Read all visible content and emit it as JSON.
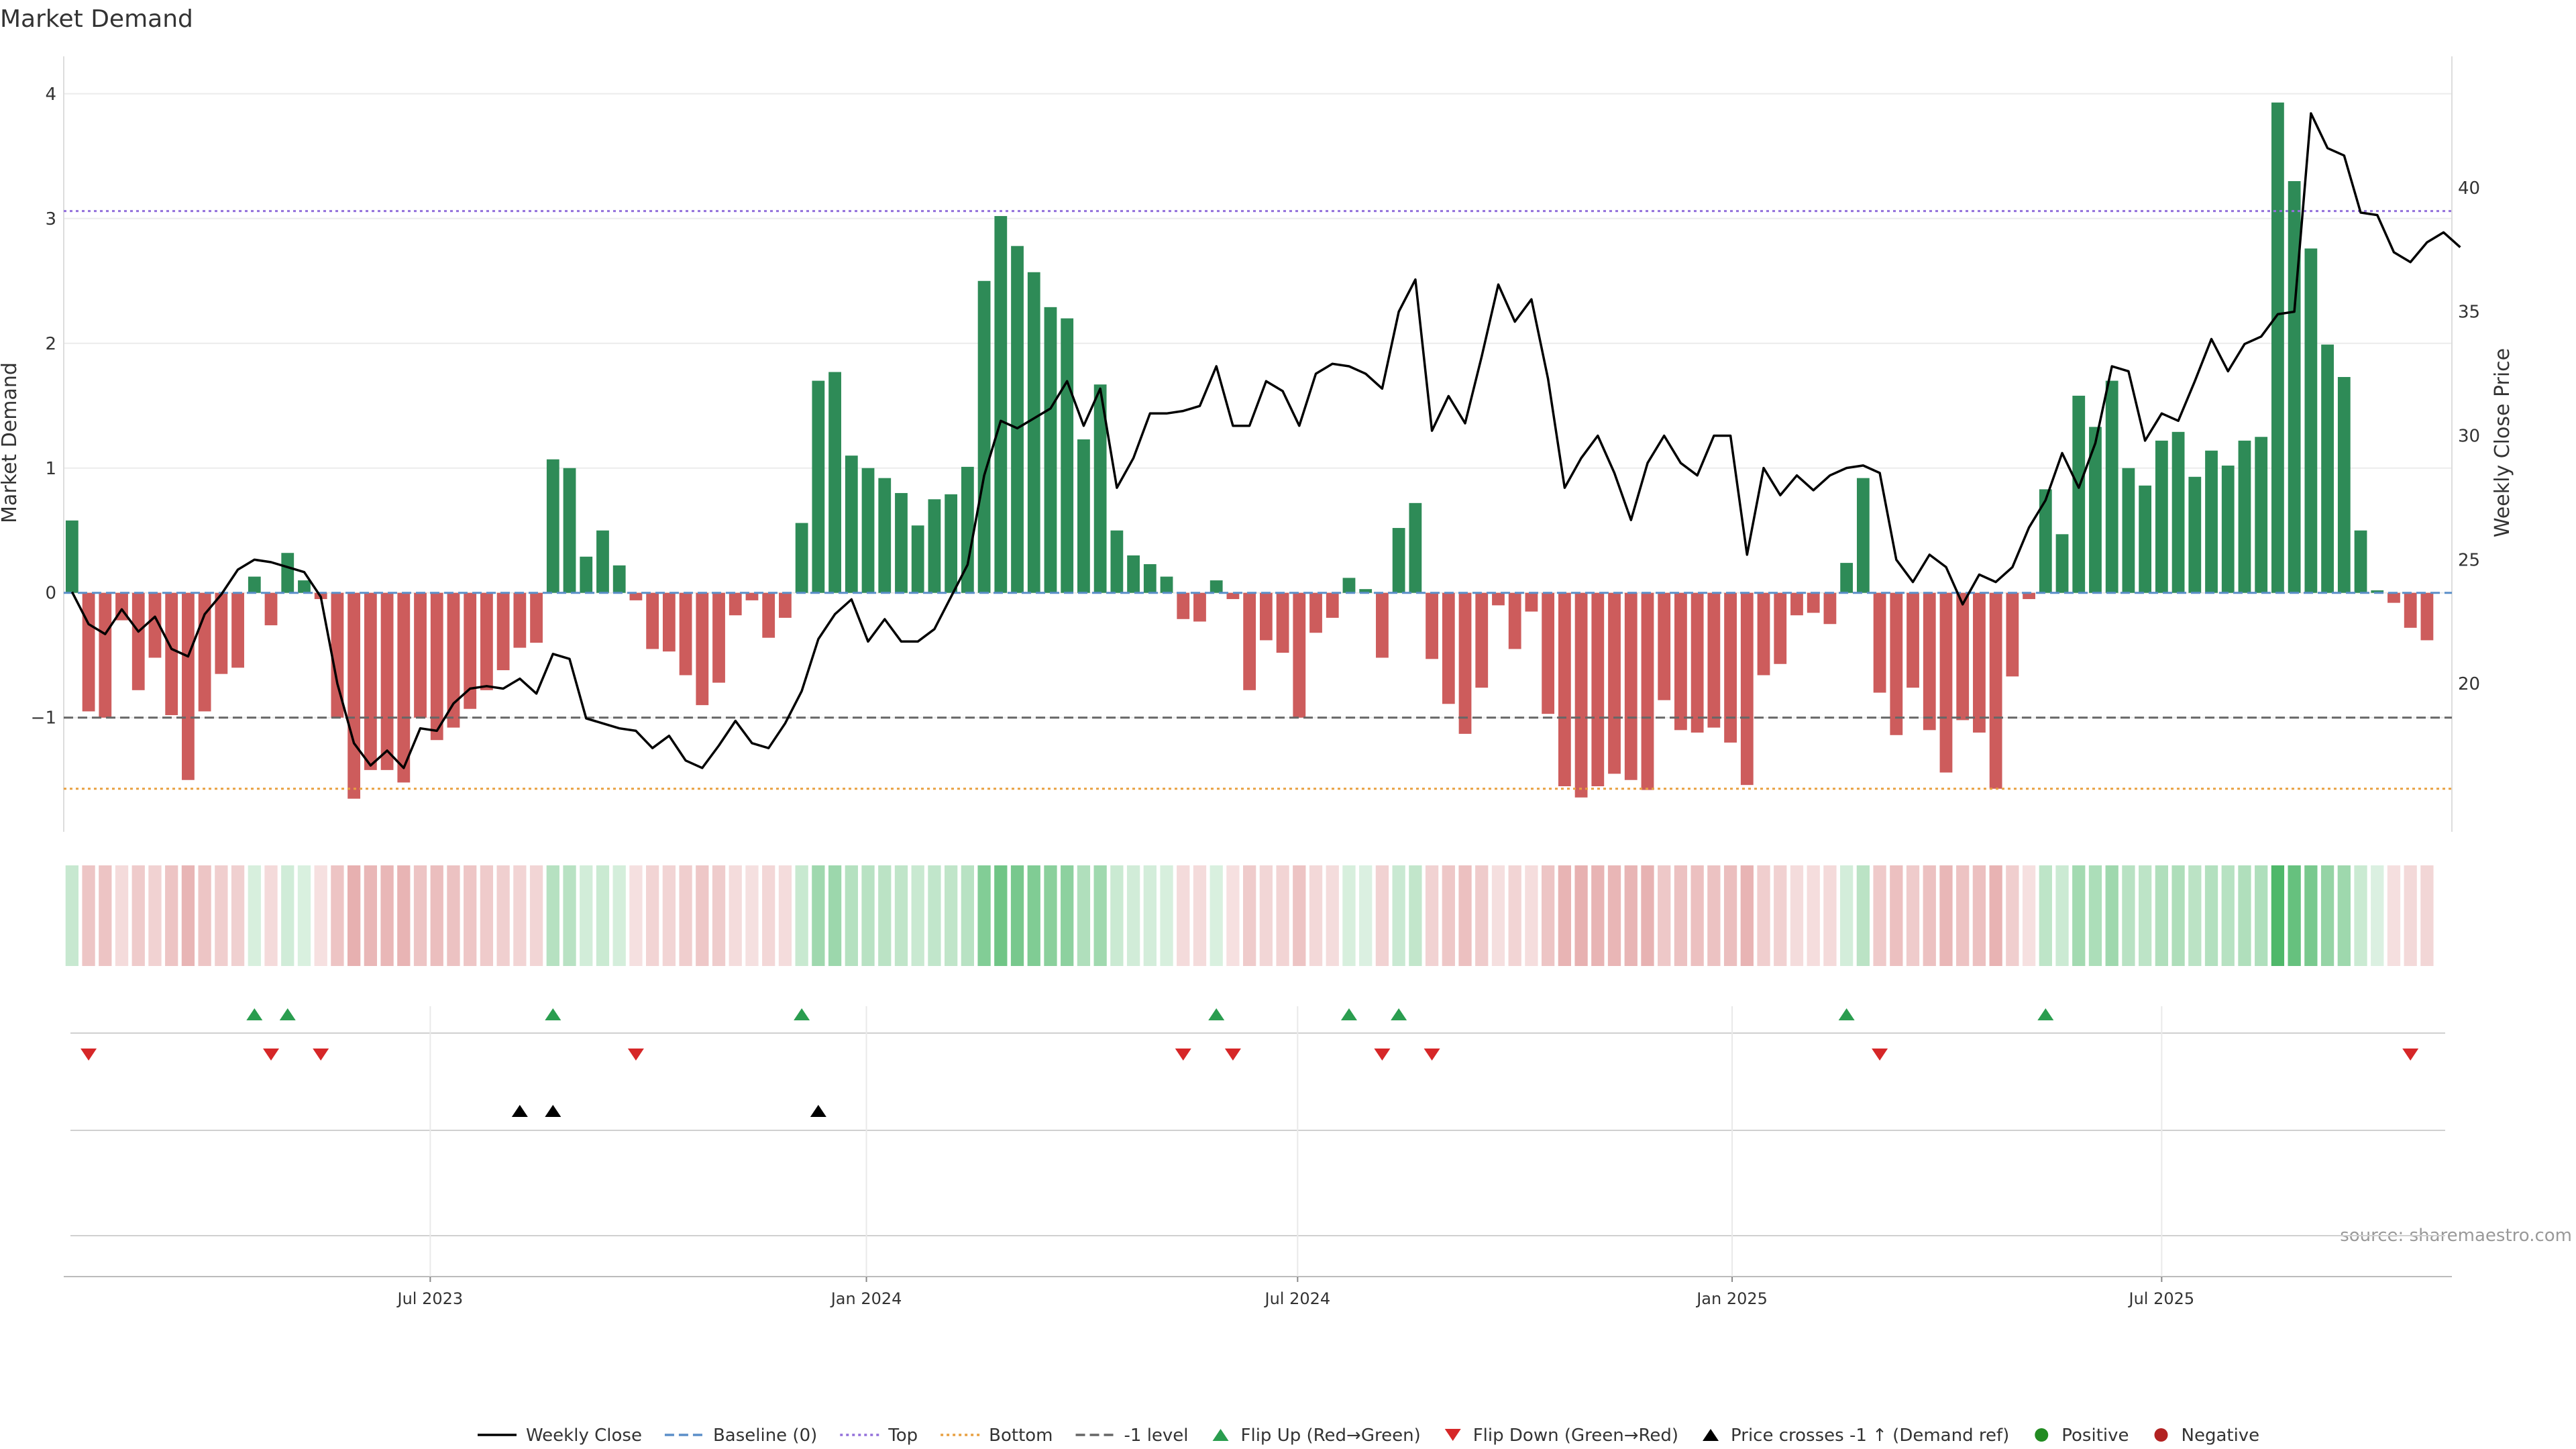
{
  "chart_data": {
    "type": "bar",
    "title": "Market Demand",
    "ylabel": "Market Demand",
    "ylabel_right": "Weekly Close Price",
    "ylim": [
      -1.98,
      4.3
    ],
    "ylim_right": [
      13.7,
      45.3
    ],
    "yticks": [
      -1,
      0,
      1,
      2,
      3,
      4
    ],
    "yticks_right": [
      20,
      25,
      30,
      35,
      40
    ],
    "ytick_labels": [
      "−1",
      "0",
      "1",
      "2",
      "3",
      "4"
    ],
    "ytick_labels_right": [
      "20",
      "25",
      "30",
      "35",
      "40"
    ],
    "x_range": [
      -0.5,
      143.5
    ],
    "x_ticks": [
      {
        "label": "Jul 2023",
        "index": 21.6
      },
      {
        "label": "Jan 2024",
        "index": 47.9
      },
      {
        "label": "Jul 2024",
        "index": 73.9
      },
      {
        "label": "Jan 2025",
        "index": 100.1
      },
      {
        "label": "Jul 2025",
        "index": 126.0
      }
    ],
    "demand": [
      0.58,
      -0.95,
      -1.0,
      -0.22,
      -0.78,
      -0.52,
      -0.98,
      -1.5,
      -0.95,
      -0.65,
      -0.6,
      0.13,
      -0.26,
      0.32,
      0.1,
      -0.05,
      -1.0,
      -1.65,
      -1.42,
      -1.42,
      -1.52,
      -1.0,
      -1.18,
      -1.08,
      -0.93,
      -0.78,
      -0.62,
      -0.44,
      -0.4,
      1.07,
      1.0,
      0.29,
      0.5,
      0.22,
      -0.06,
      -0.45,
      -0.47,
      -0.66,
      -0.9,
      -0.72,
      -0.18,
      -0.06,
      -0.36,
      -0.2,
      0.56,
      1.7,
      1.77,
      1.1,
      1.0,
      0.92,
      0.8,
      0.54,
      0.75,
      0.79,
      1.01,
      2.5,
      3.02,
      2.78,
      2.57,
      2.29,
      2.2,
      1.23,
      1.67,
      0.5,
      0.3,
      0.23,
      0.13,
      -0.21,
      -0.23,
      0.1,
      -0.05,
      -0.78,
      -0.38,
      -0.48,
      -1.0,
      -0.32,
      -0.2,
      0.12,
      0.03,
      -0.52,
      0.52,
      0.72,
      -0.53,
      -0.89,
      -1.13,
      -0.76,
      -0.1,
      -0.45,
      -0.15,
      -0.97,
      -1.55,
      -1.64,
      -1.55,
      -1.45,
      -1.5,
      -1.58,
      -0.86,
      -1.1,
      -1.12,
      -1.08,
      -1.2,
      -1.54,
      -0.66,
      -0.57,
      -0.18,
      -0.16,
      -0.25,
      0.24,
      0.92,
      -0.8,
      -1.14,
      -0.76,
      -1.1,
      -1.44,
      -1.02,
      -1.12,
      -1.57,
      -0.67,
      -0.05,
      0.83,
      0.47,
      1.58,
      1.33,
      1.7,
      1.0,
      0.86,
      1.22,
      1.29,
      0.93,
      1.14,
      1.02,
      1.22,
      1.25,
      3.93,
      3.3,
      2.76,
      1.99,
      1.73,
      0.5,
      0.02,
      -0.08,
      -0.28,
      -0.38
    ],
    "weekly_close": [
      23.7,
      22.4,
      22.0,
      23.0,
      22.1,
      22.7,
      21.4,
      21.1,
      22.8,
      23.6,
      24.6,
      25.0,
      24.9,
      24.7,
      24.5,
      23.5,
      20.0,
      17.6,
      16.7,
      17.3,
      16.6,
      18.2,
      18.1,
      19.2,
      19.8,
      19.9,
      19.8,
      20.2,
      19.6,
      21.2,
      21.0,
      18.6,
      18.4,
      18.2,
      18.1,
      17.4,
      17.9,
      16.9,
      16.6,
      17.5,
      18.5,
      17.6,
      17.4,
      18.4,
      19.7,
      21.8,
      22.8,
      23.4,
      21.7,
      22.6,
      21.7,
      21.7,
      22.2,
      23.5,
      24.8,
      28.4,
      30.6,
      30.3,
      30.7,
      31.1,
      32.2,
      30.4,
      31.9,
      27.9,
      29.1,
      30.9,
      30.9,
      31.0,
      31.2,
      32.8,
      30.4,
      30.4,
      32.2,
      31.8,
      30.4,
      32.5,
      32.9,
      32.8,
      32.5,
      31.9,
      35.0,
      36.3,
      30.2,
      31.6,
      30.5,
      33.2,
      36.1,
      34.6,
      35.5,
      32.3,
      27.9,
      29.1,
      30.0,
      28.5,
      26.6,
      28.9,
      30.0,
      28.9,
      28.4,
      30.0,
      30.0,
      25.2,
      28.7,
      27.6,
      28.4,
      27.8,
      28.4,
      28.7,
      28.8,
      28.5,
      25.0,
      24.1,
      25.2,
      24.7,
      23.2,
      24.4,
      24.1,
      24.7,
      26.3,
      27.4,
      29.3,
      27.9,
      29.7,
      32.8,
      32.6,
      29.8,
      30.9,
      30.6,
      32.2,
      33.9,
      32.6,
      33.7,
      34.0,
      34.9,
      35.0,
      43.0,
      41.6,
      41.3,
      39.0,
      38.9,
      37.4,
      37.0,
      37.8,
      38.2,
      37.6
    ],
    "reference_lines": [
      {
        "name": "Baseline (0)",
        "y": 0,
        "color": "#5b8fc9",
        "style": "dashed"
      },
      {
        "name": "Top",
        "y": 3.06,
        "color": "#9370db",
        "style": "dotted"
      },
      {
        "name": "Bottom",
        "y": -1.57,
        "color": "#e8a041",
        "style": "dotted"
      },
      {
        "name": "-1 level",
        "y": -1.0,
        "color": "#666666",
        "style": "dashed"
      }
    ],
    "events": {
      "flip_up": [
        11,
        13,
        29,
        44,
        69,
        77,
        80,
        107,
        119
      ],
      "flip_down": [
        1,
        12,
        15,
        34,
        67,
        70,
        79,
        82,
        109,
        141
      ],
      "price_cross": [
        27,
        29,
        45
      ]
    },
    "colors": {
      "positive": "#2e8b57",
      "negative": "#cd5c5c",
      "close_line": "#000000",
      "flip_up": "#2a9d4f",
      "flip_down": "#d62728",
      "price_cross": "#000000",
      "legend_positive": "#228b22",
      "legend_negative": "#b22222"
    },
    "legend": [
      {
        "label": "Weekly Close",
        "kind": "line",
        "color": "#000000",
        "dash": "none"
      },
      {
        "label": "Baseline (0)",
        "kind": "line",
        "color": "#5b8fc9",
        "dash": "dashed"
      },
      {
        "label": "Top",
        "kind": "line",
        "color": "#9370db",
        "dash": "dotted"
      },
      {
        "label": "Bottom",
        "kind": "line",
        "color": "#e8a041",
        "dash": "dotted"
      },
      {
        "label": "-1 level",
        "kind": "line",
        "color": "#666666",
        "dash": "dashed"
      },
      {
        "label": "Flip Up (Red→Green)",
        "kind": "triangle-up",
        "color": "#2a9d4f"
      },
      {
        "label": "Flip Down (Green→Red)",
        "kind": "triangle-down",
        "color": "#d62728"
      },
      {
        "label": "Price crosses -1 ↑ (Demand ref)",
        "kind": "triangle-up",
        "color": "#000000"
      },
      {
        "label": "Positive",
        "kind": "circle",
        "color": "#228b22"
      },
      {
        "label": "Negative",
        "kind": "circle",
        "color": "#b22222"
      }
    ],
    "source": "source: sharemaestro.com"
  }
}
